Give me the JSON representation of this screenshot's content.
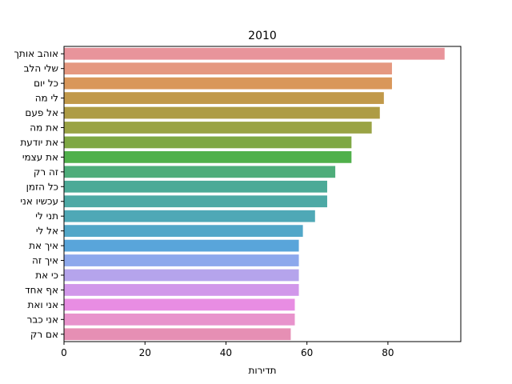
{
  "chart_data": {
    "type": "bar",
    "orientation": "horizontal",
    "title": "2010",
    "xlabel": "תדירות",
    "ylabel": "",
    "xlim": [
      0,
      98
    ],
    "xticks": [
      0,
      20,
      40,
      60,
      80
    ],
    "grid": false,
    "categories": [
      "אוהב אותך",
      "שלי הלב",
      "כל יום",
      "לי מה",
      "אל פעם",
      "את מה",
      "את יודעת",
      "את עצמי",
      "זה רק",
      "כל הזמן",
      "עכשיו אני",
      "תני לי",
      "אל לי",
      "איך את",
      "איך זה",
      "כי את",
      "אף אחד",
      "אני ואת",
      "אני כבר",
      "אם רק"
    ],
    "values": [
      94,
      81,
      81,
      79,
      78,
      76,
      71,
      71,
      67,
      65,
      65,
      62,
      59,
      58,
      58,
      58,
      58,
      57,
      57,
      56
    ],
    "colors": [
      "#e8949b",
      "#e59880",
      "#d9975a",
      "#c1994a",
      "#ae9c45",
      "#9aa345",
      "#7fa844",
      "#50b04b",
      "#4ead7a",
      "#4caa97",
      "#4da9a5",
      "#4fa8b6",
      "#52a7c8",
      "#59a5da",
      "#8da8ec",
      "#b5a4ec",
      "#d197ea",
      "#e88de3",
      "#e893cc",
      "#e68fb4"
    ]
  }
}
